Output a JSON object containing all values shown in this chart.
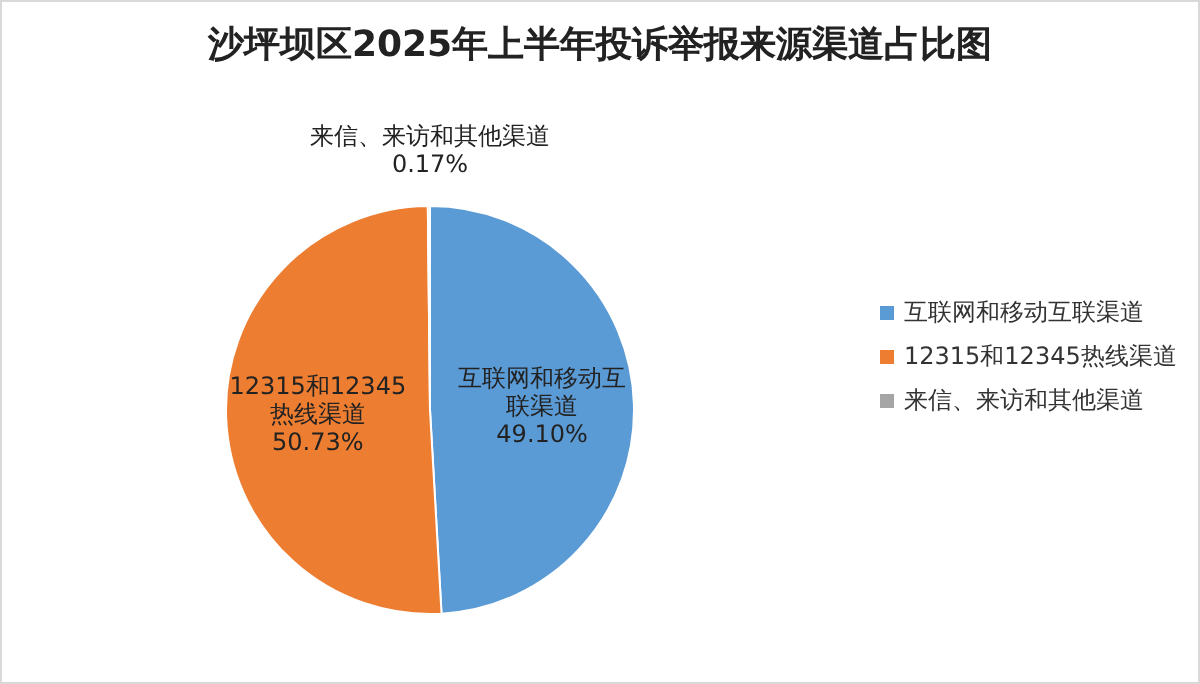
{
  "chart_data": {
    "type": "pie",
    "title": "沙坪坝区2025年上半年投诉举报来源渠道占比图",
    "categories": [
      "互联网和移动互联渠道",
      "12315和12345热线渠道",
      "来信、来访和其他渠道"
    ],
    "values": [
      49.1,
      50.73,
      0.17
    ],
    "colors": [
      "#5b9bd5",
      "#ed7d31",
      "#a5a5a5"
    ],
    "value_labels": [
      "49.10%",
      "50.73%",
      "0.17%"
    ],
    "legend": "right"
  }
}
